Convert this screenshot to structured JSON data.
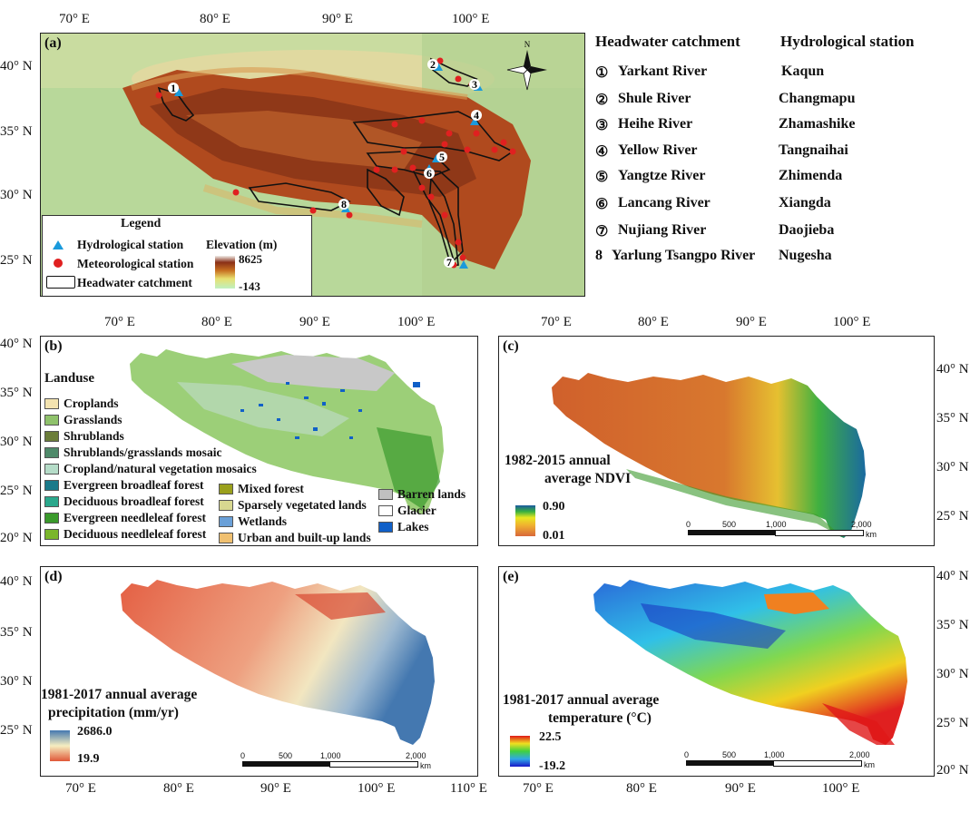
{
  "panel_a": {
    "letter": "(a)",
    "top_ticks": [
      "70° E",
      "80° E",
      "90° E",
      "100° E"
    ],
    "left_ticks": [
      "40° N",
      "35° N",
      "30° N",
      "25° N"
    ],
    "legend": {
      "title": "Legend",
      "hydro": "Hydrological station",
      "meteo": "Meteorological station",
      "catch": "Headwater catchment",
      "elev_title": "Elevation (m)",
      "elev_max": "8625",
      "elev_min": "-143"
    },
    "compass": "N",
    "markers": [
      "1",
      "2",
      "3",
      "4",
      "5",
      "6",
      "7",
      "8"
    ]
  },
  "table": {
    "col1": "Headwater catchment",
    "col2": "Hydrological station",
    "rows": [
      {
        "num": "①",
        "river": "Yarkant River",
        "station": "Kaqun"
      },
      {
        "num": "②",
        "river": "Shule River",
        "station": "Changmapu"
      },
      {
        "num": "③",
        "river": "Heihe River",
        "station": "Zhamashike"
      },
      {
        "num": "④",
        "river": "Yellow River",
        "station": "Tangnaihai"
      },
      {
        "num": "⑤",
        "river": "Yangtze River",
        "station": "Zhimenda"
      },
      {
        "num": "⑥",
        "river": "Lancang River",
        "station": "Xiangda"
      },
      {
        "num": "⑦",
        "river": "Nujiang River",
        "station": "Daojieba"
      },
      {
        "num": "8",
        "river": "Yarlung Tsangpo River",
        "station": "Nugesha"
      }
    ]
  },
  "panel_b": {
    "letter": "(b)",
    "top_ticks": [
      "70° E",
      "80° E",
      "90° E",
      "100° E"
    ],
    "left_ticks": [
      "40° N",
      "35° N",
      "30° N",
      "25° N",
      "20° N"
    ],
    "legend_title": "Landuse",
    "classes": [
      {
        "label": "Croplands",
        "color": "#f3e3b0"
      },
      {
        "label": "Grasslands",
        "color": "#8fc26b"
      },
      {
        "label": "Shrublands",
        "color": "#6b7d3a"
      },
      {
        "label": "Shrublands/grasslands mosaic",
        "color": "#4f8a6a"
      },
      {
        "label": "Cropland/natural vegetation mosaics",
        "color": "#b5dcc8"
      },
      {
        "label": "Evergreen broadleaf forest",
        "color": "#1b7a8a"
      },
      {
        "label": "Deciduous broadleaf forest",
        "color": "#2aa88c"
      },
      {
        "label": "Evergreen needleleaf forest",
        "color": "#3a9a2c"
      },
      {
        "label": "Deciduous needleleaf forest",
        "color": "#7ab62c"
      },
      {
        "label": "Mixed forest",
        "color": "#9aa01c"
      },
      {
        "label": "Sparsely vegetated lands",
        "color": "#d8d890"
      },
      {
        "label": "Wetlands",
        "color": "#6aa0d8"
      },
      {
        "label": "Urban and built-up lands",
        "color": "#f0c070"
      },
      {
        "label": "Barren lands",
        "color": "#c0c0c0"
      },
      {
        "label": "Glacier",
        "color": "#ffffff"
      },
      {
        "label": "Lakes",
        "color": "#1060c8"
      }
    ]
  },
  "panel_c": {
    "letter": "(c)",
    "top_ticks": [
      "70° E",
      "80° E",
      "90° E",
      "100° E"
    ],
    "right_ticks": [
      "40° N",
      "35° N",
      "30° N",
      "25° N"
    ],
    "title_line1": "1982-2015 annual",
    "title_line2": "average NDVI",
    "cbar_max": "0.90",
    "cbar_min": "0.01",
    "scale": [
      "0",
      "500",
      "1,000",
      "2,000"
    ],
    "scale_unit": "km"
  },
  "panel_d": {
    "letter": "(d)",
    "left_ticks": [
      "40° N",
      "35° N",
      "30° N",
      "25° N"
    ],
    "bottom_ticks": [
      "70° E",
      "80° E",
      "90° E",
      "100° E",
      "110° E"
    ],
    "title_line1": "1981-2017 annual average",
    "title_line2": "precipitation (mm/yr)",
    "cbar_max": "2686.0",
    "cbar_min": "19.9",
    "scale": [
      "0",
      "500",
      "1,000",
      "2,000"
    ],
    "scale_unit": "km"
  },
  "panel_e": {
    "letter": "(e)",
    "right_ticks": [
      "40° N",
      "35° N",
      "30° N",
      "25° N",
      "20° N"
    ],
    "bottom_ticks": [
      "70° E",
      "80° E",
      "90° E",
      "100° E"
    ],
    "title_line1": "1981-2017 annual average",
    "title_line2": "temperature (°C)",
    "cbar_max": "22.5",
    "cbar_min": "-19.2",
    "scale": [
      "0",
      "500",
      "1,000",
      "2,000"
    ],
    "scale_unit": "km"
  }
}
